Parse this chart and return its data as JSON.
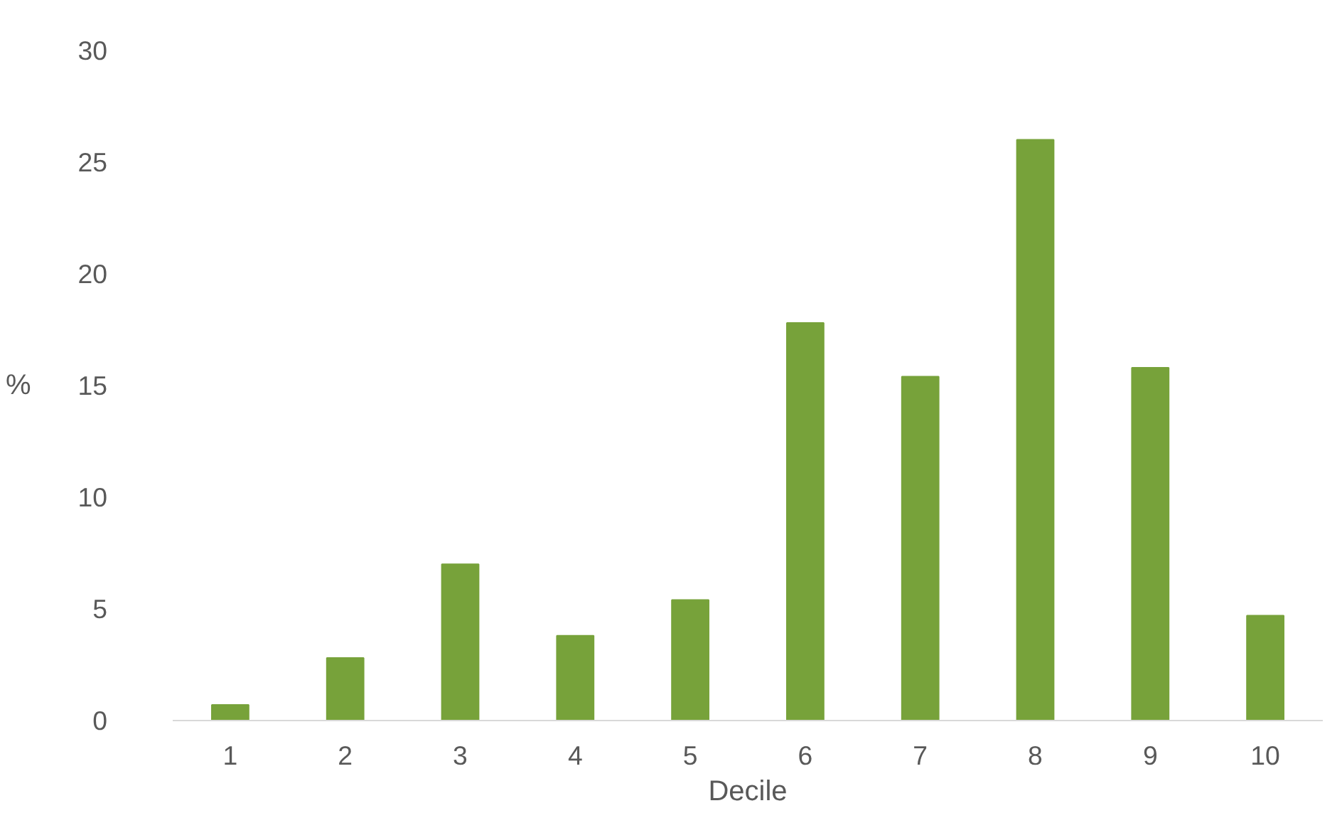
{
  "chart_data": {
    "type": "bar",
    "xlabel": "Decile",
    "ylabel": "%",
    "categories": [
      "1",
      "2",
      "3",
      "4",
      "5",
      "6",
      "7",
      "8",
      "9",
      "10"
    ],
    "values": [
      0.7,
      2.8,
      7.0,
      3.8,
      5.4,
      17.8,
      15.4,
      26.0,
      15.8,
      4.7
    ],
    "color": "#77a23a",
    "ylim": [
      0,
      30
    ],
    "yticks": [
      0,
      5,
      10,
      15,
      20,
      25,
      30
    ],
    "grid": false
  }
}
